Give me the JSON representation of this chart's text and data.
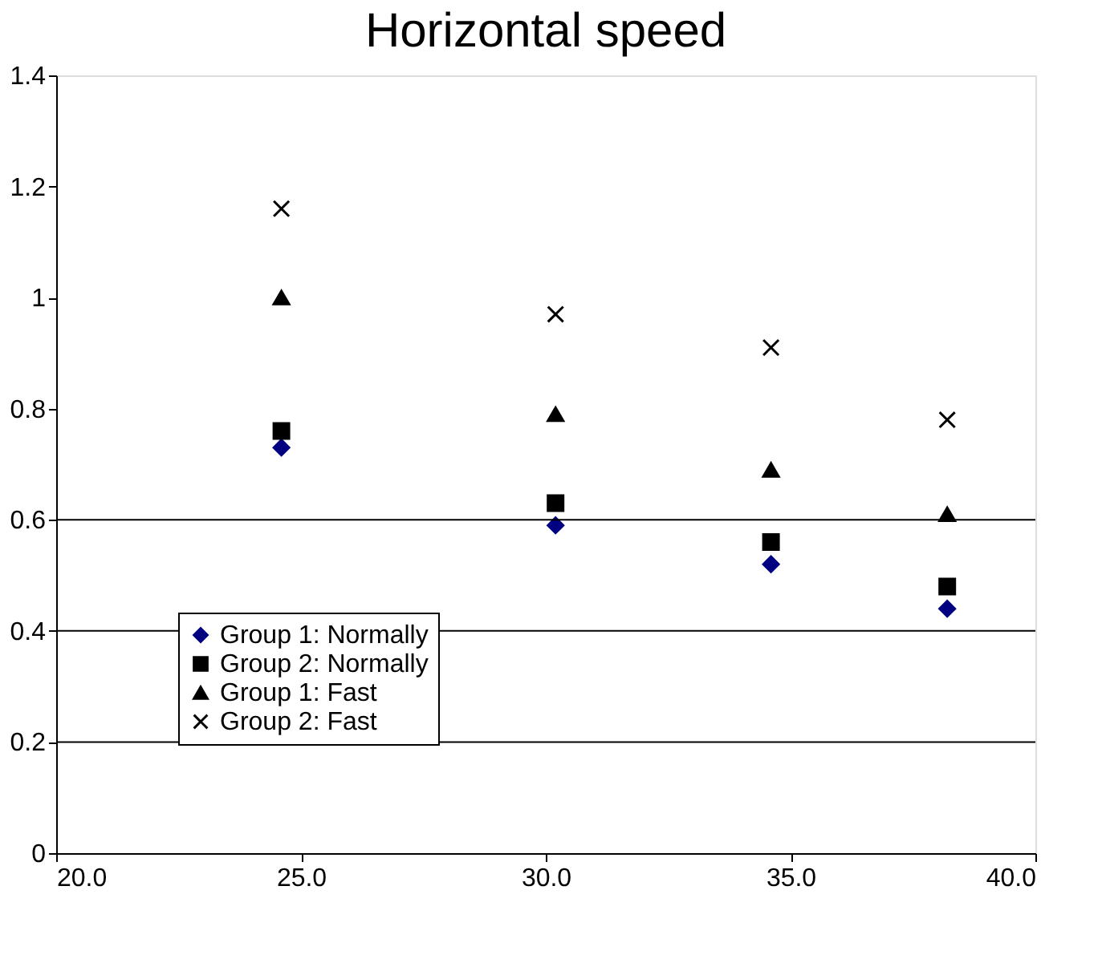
{
  "chart_data": {
    "type": "scatter",
    "title": "Horizontal speed",
    "x": [
      24.6,
      30.2,
      34.6,
      38.2
    ],
    "series": [
      {
        "name": "Group 1: Normally",
        "color": "#000080",
        "marker": "diamond",
        "values": [
          0.73,
          0.59,
          0.52,
          0.44
        ]
      },
      {
        "name": "Group 2: Normally",
        "color": "#000000",
        "marker": "square",
        "values": [
          0.76,
          0.63,
          0.56,
          0.48
        ]
      },
      {
        "name": "Group 1: Fast",
        "color": "#000000",
        "marker": "triangle",
        "values": [
          1.0,
          0.79,
          0.69,
          0.61
        ]
      },
      {
        "name": "Group 2: Fast",
        "color": "#000000",
        "marker": "cross",
        "values": [
          1.16,
          0.97,
          0.91,
          0.78
        ]
      }
    ],
    "xlim": [
      20,
      40
    ],
    "xticks": [
      {
        "value": 20,
        "label": "20.0"
      },
      {
        "value": 25,
        "label": "25.0"
      },
      {
        "value": 30,
        "label": "30.0"
      },
      {
        "value": 35,
        "label": "35.0"
      },
      {
        "value": 40,
        "label": "40.0"
      }
    ],
    "ylim": [
      0,
      1.4
    ],
    "yticks": [
      0,
      0.2,
      0.4,
      0.6,
      0.8,
      1,
      1.2,
      1.4
    ],
    "ref_lines": [
      {
        "axis": "y",
        "value": 0.2,
        "color": "#000000"
      },
      {
        "axis": "y",
        "value": 0.4,
        "color": "#000000"
      },
      {
        "axis": "y",
        "value": 0.6,
        "color": "#000000"
      }
    ],
    "legend": "bottom left",
    "grid": false
  }
}
